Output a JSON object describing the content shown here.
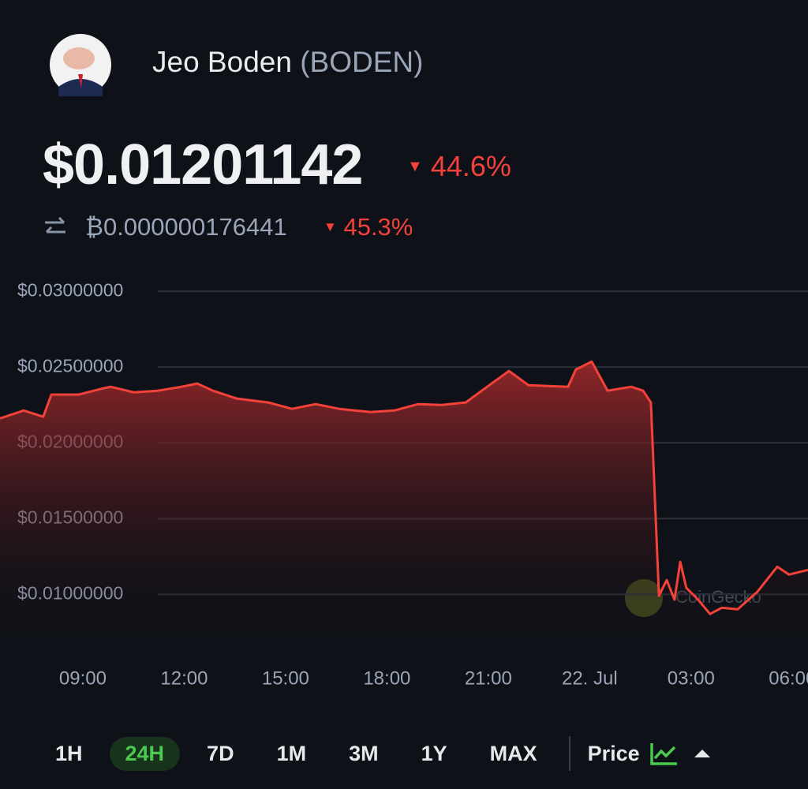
{
  "header": {
    "name": "Jeo Boden",
    "symbol": "(BODEN)",
    "price": "$0.01201142",
    "change": "44.6%",
    "btc_price": "₿0.000000176441",
    "btc_change": "45.3%"
  },
  "chart_data": {
    "type": "line",
    "watermark": "CoinGecko",
    "color": "#f4423b",
    "x": [
      6.55,
      7.25,
      7.83,
      8.07,
      8.88,
      9.59,
      9.82,
      10.52,
      11.22,
      11.92,
      12.39,
      12.85,
      13.55,
      14.49,
      15.19,
      15.89,
      16.59,
      17.52,
      18.22,
      18.92,
      19.62,
      20.33,
      21.03,
      21.61,
      22.19,
      23.36,
      23.59,
      24.06,
      24.53,
      25.23,
      25.58,
      25.81,
      26.05,
      26.28,
      26.51,
      26.68,
      26.86,
      27.21,
      27.56,
      27.91,
      28.38,
      28.96,
      29.55,
      29.9,
      30.46
    ],
    "values": [
      0.02161,
      0.02213,
      0.02172,
      0.02318,
      0.02318,
      0.02359,
      0.0237,
      0.02333,
      0.02344,
      0.0237,
      0.02391,
      0.02344,
      0.02292,
      0.02266,
      0.02224,
      0.02255,
      0.02224,
      0.02203,
      0.02213,
      0.02255,
      0.0225,
      0.02266,
      0.0238,
      0.02474,
      0.0238,
      0.0237,
      0.02484,
      0.02536,
      0.02344,
      0.0237,
      0.02344,
      0.02266,
      0.0099,
      0.01094,
      0.00964,
      0.01214,
      0.01042,
      0.00964,
      0.0087,
      0.00911,
      0.00901,
      0.01016,
      0.01182,
      0.0113,
      0.01161
    ],
    "xlim": [
      6.55,
      30.46
    ],
    "xticks": [
      {
        "value": 9,
        "label": "09:00"
      },
      {
        "value": 12,
        "label": "12:00"
      },
      {
        "value": 15,
        "label": "15:00"
      },
      {
        "value": 18,
        "label": "18:00"
      },
      {
        "value": 21,
        "label": "21:00"
      },
      {
        "value": 24,
        "label": "22. Jul"
      },
      {
        "value": 27,
        "label": "03:00"
      },
      {
        "value": 30,
        "label": "06:00"
      }
    ],
    "ylim": [
      0.006,
      0.031
    ],
    "yticks": [
      {
        "value": 0.01,
        "label": "$0.01000000"
      },
      {
        "value": 0.015,
        "label": "$0.01500000"
      },
      {
        "value": 0.02,
        "label": "$0.02000000"
      },
      {
        "value": 0.025,
        "label": "$0.02500000"
      },
      {
        "value": 0.03,
        "label": "$0.03000000"
      }
    ],
    "grid": true
  },
  "tabs": [
    "1H",
    "24H",
    "7D",
    "1M",
    "3M",
    "1Y",
    "MAX"
  ],
  "active_tab": 1,
  "metric": "Price"
}
